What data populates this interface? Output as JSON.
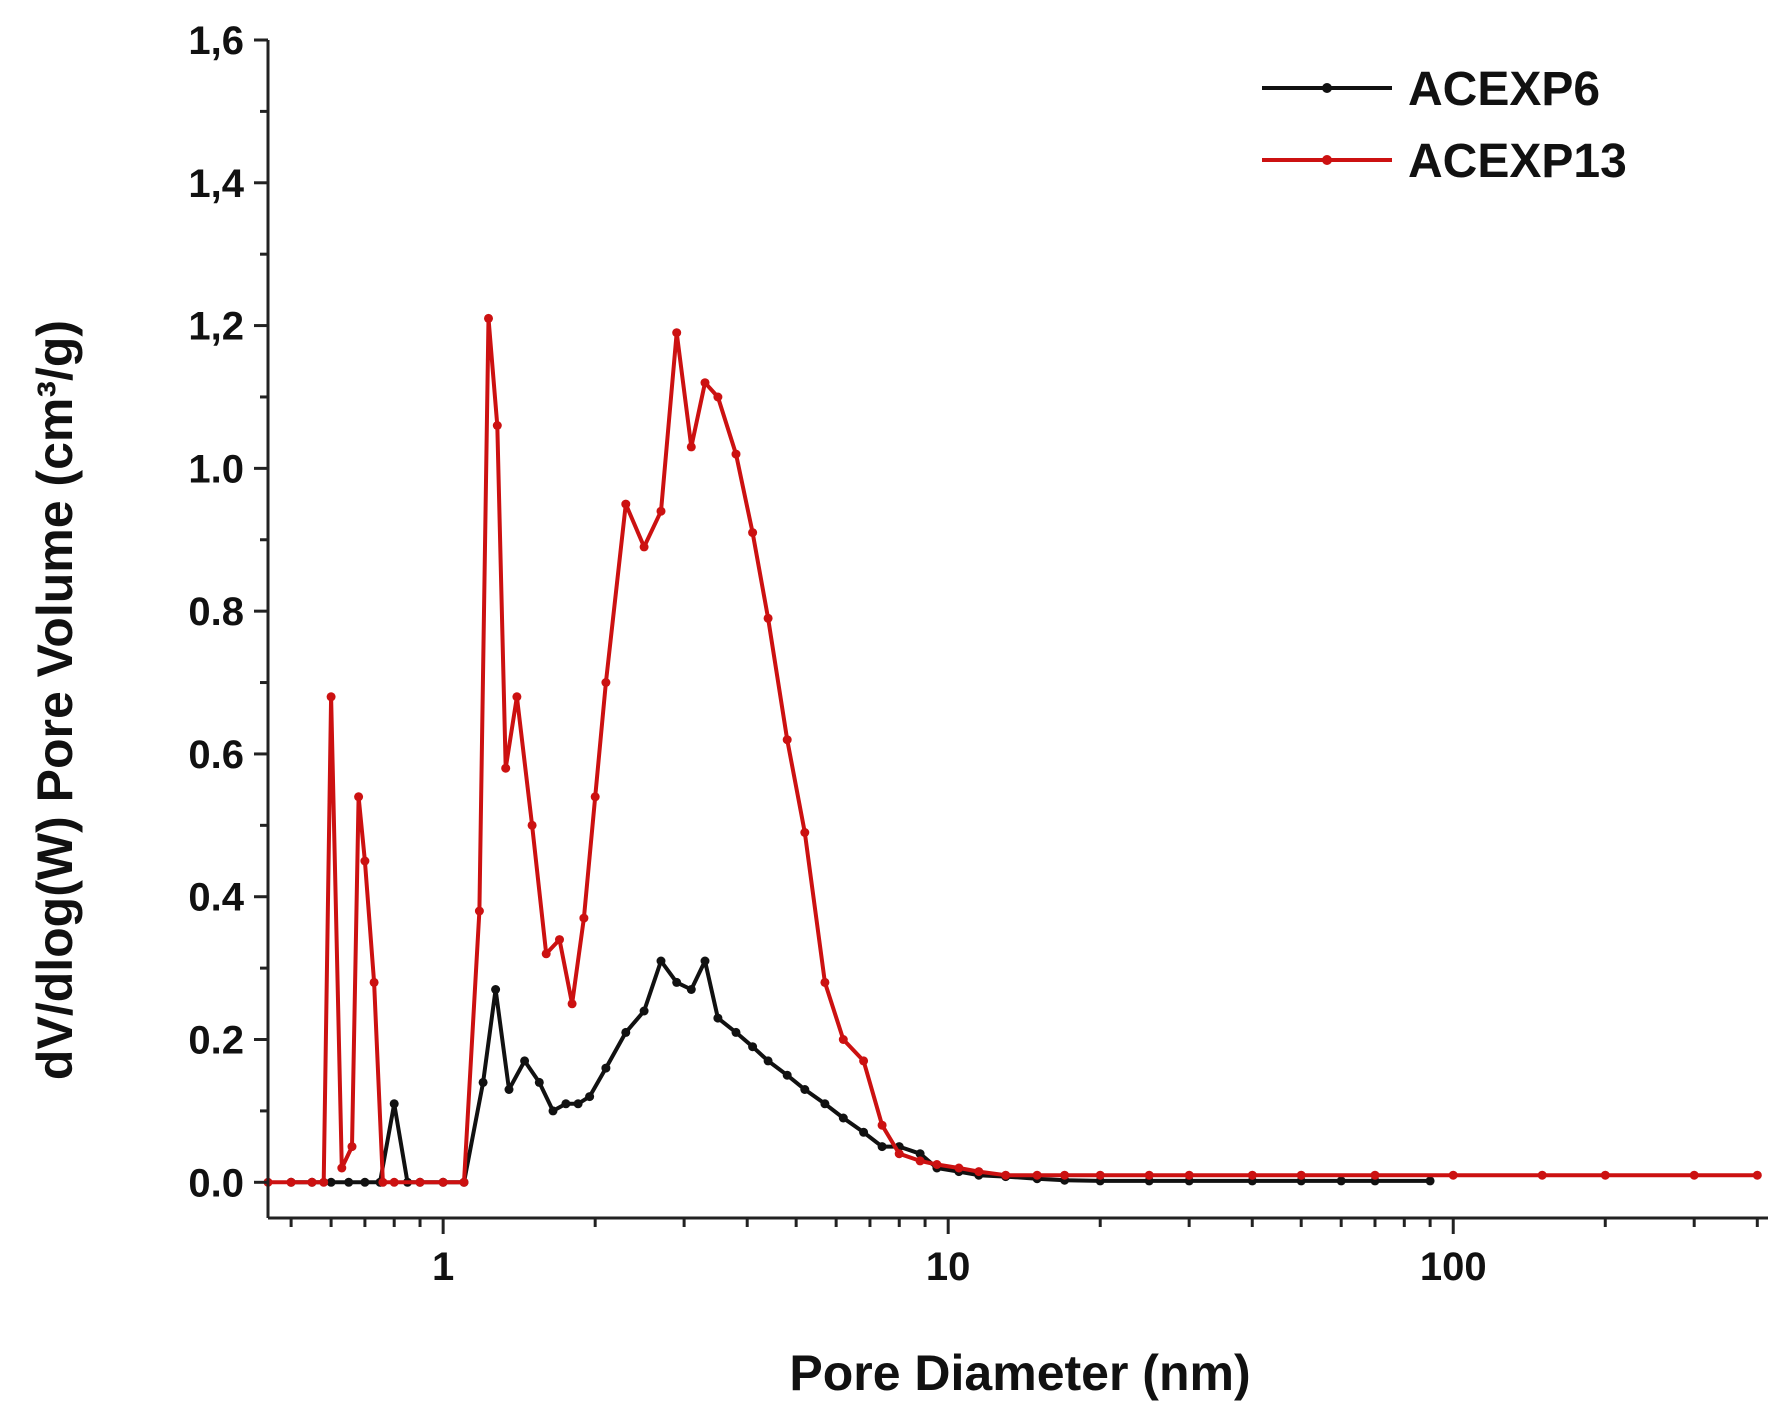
{
  "chart_data": {
    "type": "line",
    "xlabel": "Pore Diameter (nm)",
    "ylabel": "dV/dlog(W) Pore Volume (cm³/g)",
    "xscale": "log",
    "xlim": [
      0.45,
      420
    ],
    "ylim": [
      -0.05,
      1.6
    ],
    "xticks": [
      1,
      10,
      100
    ],
    "xtick_labels": [
      "1",
      "10",
      "100"
    ],
    "yticks": [
      0.0,
      0.2,
      0.4,
      0.6,
      0.8,
      1.0,
      1.2,
      1.4,
      1.6
    ],
    "ytick_labels": [
      "0.0",
      "0.2",
      "0.4",
      "0.6",
      "0.8",
      "1.0",
      "1,2",
      "1,4",
      "1,6"
    ],
    "legend_position": "top-right",
    "grid": false,
    "series": [
      {
        "name": "ACEXP6",
        "color": "#111111",
        "x": [
          0.5,
          0.55,
          0.6,
          0.65,
          0.7,
          0.75,
          0.8,
          0.85,
          0.9,
          1.0,
          1.1,
          1.2,
          1.27,
          1.35,
          1.45,
          1.55,
          1.65,
          1.75,
          1.85,
          1.95,
          2.1,
          2.3,
          2.5,
          2.7,
          2.9,
          3.1,
          3.3,
          3.5,
          3.8,
          4.1,
          4.4,
          4.8,
          5.2,
          5.7,
          6.2,
          6.8,
          7.4,
          8.0,
          8.8,
          9.5,
          10.5,
          11.5,
          13,
          15,
          17,
          20,
          25,
          30,
          40,
          50,
          60,
          70,
          90
        ],
        "y": [
          0.0,
          0.0,
          0.0,
          0.0,
          0.0,
          0.0,
          0.11,
          0.0,
          0.0,
          0.0,
          0.0,
          0.14,
          0.27,
          0.13,
          0.17,
          0.14,
          0.1,
          0.11,
          0.11,
          0.12,
          0.16,
          0.21,
          0.24,
          0.31,
          0.28,
          0.27,
          0.31,
          0.23,
          0.21,
          0.19,
          0.17,
          0.15,
          0.13,
          0.11,
          0.09,
          0.07,
          0.05,
          0.05,
          0.04,
          0.02,
          0.015,
          0.01,
          0.008,
          0.005,
          0.003,
          0.002,
          0.002,
          0.002,
          0.002,
          0.002,
          0.002,
          0.002,
          0.002
        ]
      },
      {
        "name": "ACEXP13",
        "color": "#cc1111",
        "x": [
          0.45,
          0.5,
          0.55,
          0.58,
          0.6,
          0.63,
          0.66,
          0.68,
          0.7,
          0.73,
          0.76,
          0.8,
          0.9,
          1.0,
          1.1,
          1.18,
          1.23,
          1.28,
          1.33,
          1.4,
          1.5,
          1.6,
          1.7,
          1.8,
          1.9,
          2.0,
          2.1,
          2.3,
          2.5,
          2.7,
          2.9,
          3.1,
          3.3,
          3.5,
          3.8,
          4.1,
          4.4,
          4.8,
          5.2,
          5.7,
          6.2,
          6.8,
          7.4,
          8.0,
          8.8,
          9.5,
          10.5,
          11.5,
          13,
          15,
          17,
          20,
          25,
          30,
          40,
          50,
          70,
          100,
          150,
          200,
          300,
          400
        ],
        "y": [
          0.0,
          0.0,
          0.0,
          0.0,
          0.68,
          0.02,
          0.05,
          0.54,
          0.45,
          0.28,
          0.0,
          0.0,
          0.0,
          0.0,
          0.0,
          0.38,
          1.21,
          1.06,
          0.58,
          0.68,
          0.5,
          0.32,
          0.34,
          0.25,
          0.37,
          0.54,
          0.7,
          0.95,
          0.89,
          0.94,
          1.19,
          1.03,
          1.12,
          1.1,
          1.02,
          0.91,
          0.79,
          0.62,
          0.49,
          0.28,
          0.2,
          0.17,
          0.08,
          0.04,
          0.03,
          0.025,
          0.02,
          0.015,
          0.01,
          0.01,
          0.01,
          0.01,
          0.01,
          0.01,
          0.01,
          0.01,
          0.01,
          0.01,
          0.01,
          0.01,
          0.01,
          0.01
        ]
      }
    ]
  }
}
